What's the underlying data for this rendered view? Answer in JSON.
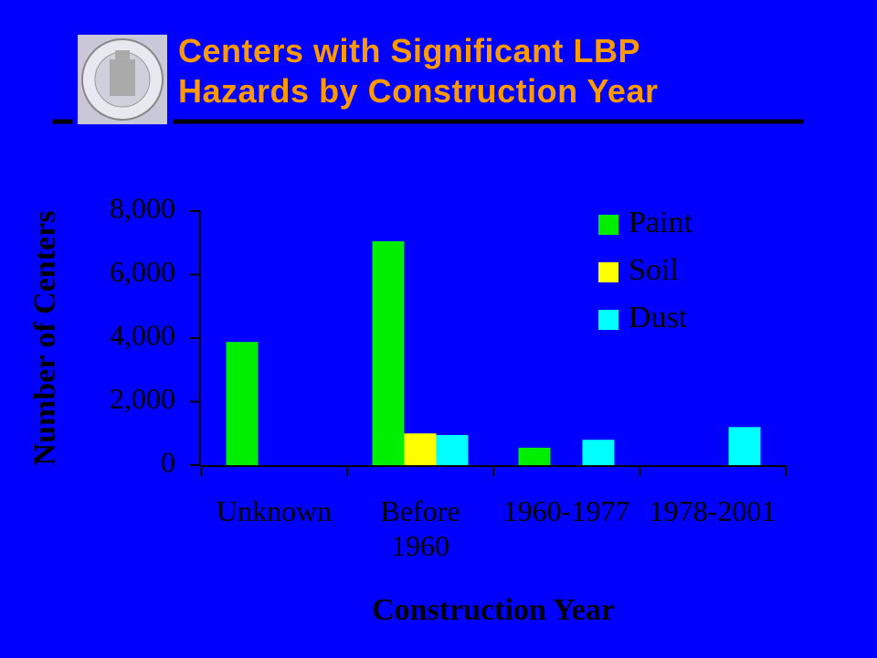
{
  "chart_data": {
    "type": "bar",
    "title": "Centers with Significant LBP Hazards by Construction Year",
    "x_label": "Construction Year",
    "y_label": "Number of Centers",
    "categories": [
      "Unknown",
      "Before 1960",
      "1960-1977",
      "1978-2001"
    ],
    "series": [
      {
        "name": "Paint",
        "color": "#00ee00",
        "values": [
          3880,
          7050,
          550,
          null
        ]
      },
      {
        "name": "Soil",
        "color": "#ffff00",
        "values": [
          null,
          1000,
          null,
          null
        ]
      },
      {
        "name": "Dust",
        "color": "#00ffff",
        "values": [
          null,
          950,
          800,
          1200
        ]
      }
    ],
    "ylim": [
      0,
      8000
    ],
    "yticks": [
      0,
      {
        "value": 2000,
        "label": "2,000"
      },
      {
        "value": 4000,
        "label": "4,000"
      },
      {
        "value": 6000,
        "label": "6,000"
      },
      {
        "value": 8000,
        "label": "8,000"
      }
    ],
    "legend": "upper right"
  }
}
